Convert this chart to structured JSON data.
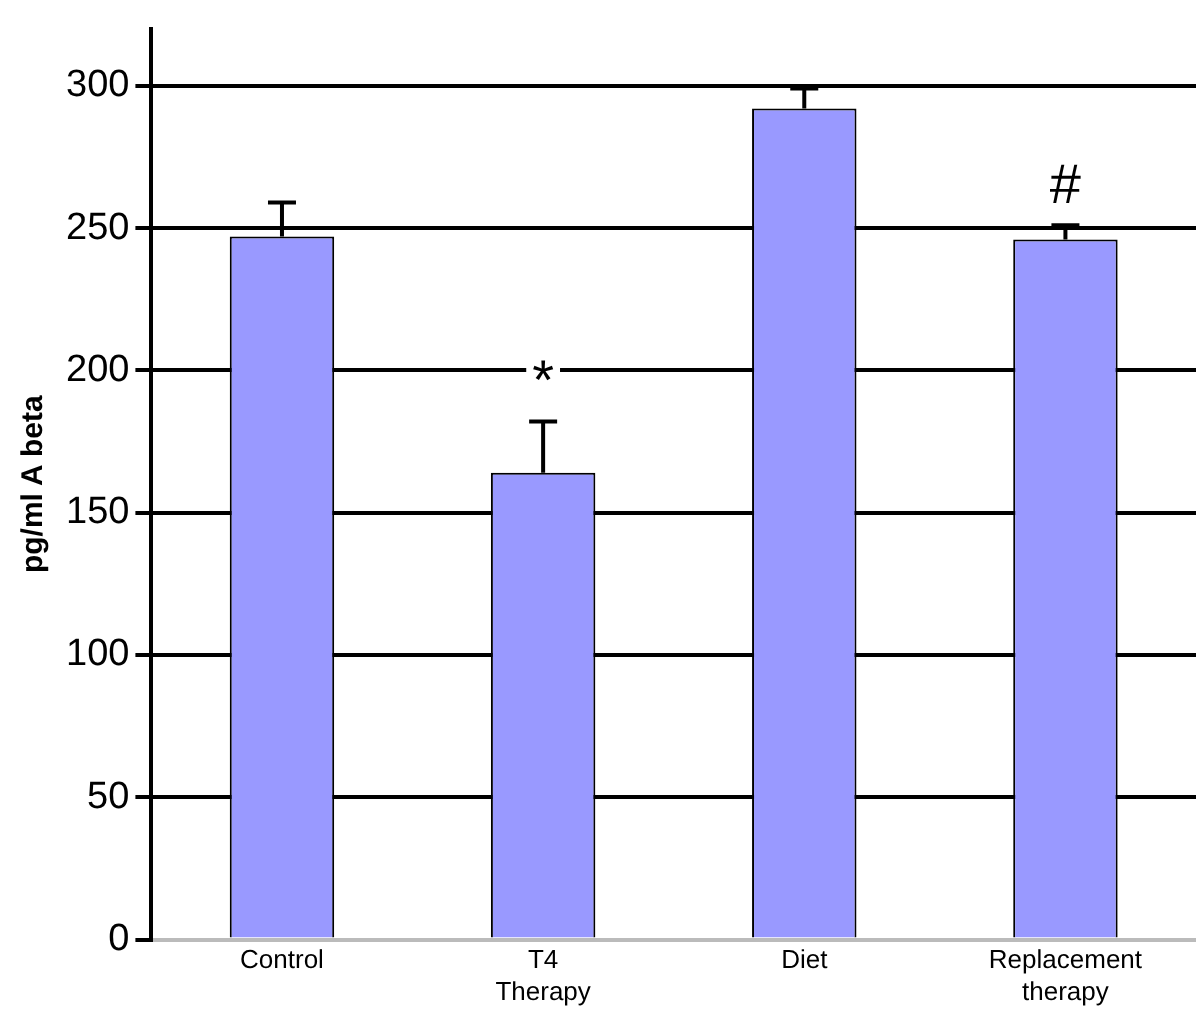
{
  "chart_data": {
    "type": "bar",
    "ylabel": "pg/ml A beta",
    "categories": [
      "Control",
      "T4 Therapy",
      "Diet",
      "Replacement therapy"
    ],
    "values": [
      247,
      164,
      292,
      246
    ],
    "errors": [
      12,
      18,
      7,
      5
    ],
    "color": "#9999ff",
    "ylim": [
      0,
      320
    ],
    "yticks": [
      0,
      50,
      100,
      150,
      200,
      250,
      300
    ],
    "grid": "y",
    "legend": false,
    "annotations": [
      "*",
      "#"
    ]
  }
}
